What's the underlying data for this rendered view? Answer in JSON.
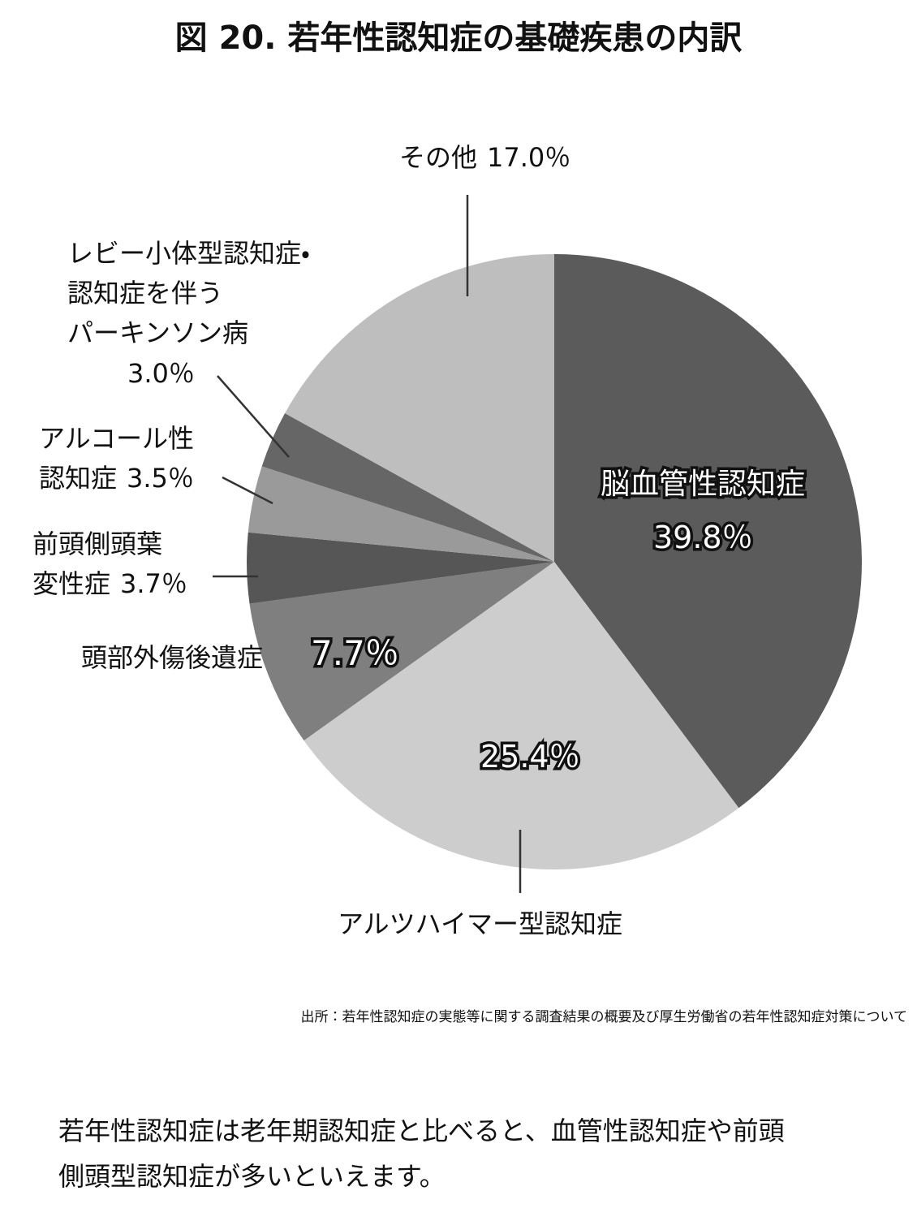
{
  "chart_data": {
    "type": "pie",
    "title": "図 20. 若年性認知症の基礎疾患の内訳",
    "categories": [
      "脳血管性認知症",
      "アルツハイマー型認知症",
      "頭部外傷後遺症",
      "前頭側頭葉\n変性症",
      "アルコール性\n認知症",
      "レビー小体型認知症・\n認知症を伴う\nパーキンソン病",
      "その他"
    ],
    "values": [
      39.8,
      25.4,
      7.7,
      3.7,
      3.5,
      3.0,
      17.0
    ],
    "value_labels": [
      "39.8％",
      "25.4％",
      "7.7％",
      "3.7％",
      "3.5％",
      "3.0％",
      "17.0％"
    ],
    "colors": [
      "#5b5b5b",
      "#cdcdcd",
      "#7f7f7f",
      "#565656",
      "#9a9a9a",
      "#666666",
      "#bebebe"
    ],
    "source": "出所：若年性認知症の実態等に関する調査結果の概要及び厚生労働省の若年性認知症対策について",
    "note": "若年性認知症は老年期認知症と比べると、血管性認知症や前頭\n側頭型認知症が多いといえます。"
  }
}
